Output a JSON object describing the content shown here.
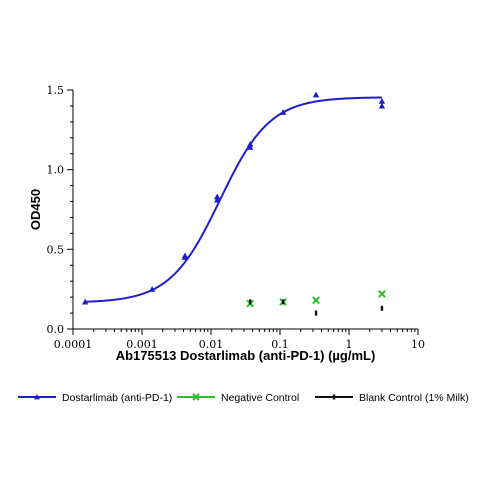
{
  "chart_data": {
    "type": "scatter",
    "xlabel": "Ab175513 Dostarlimab (anti-PD-1) (µg/mL)",
    "ylabel": "OD450",
    "xscale": "log",
    "xlim": [
      0.0001,
      10
    ],
    "ylim": [
      0,
      1.5
    ],
    "x_tick_labels": [
      "0.0001",
      "0.001",
      "0.01",
      "0.1",
      "1",
      "10"
    ],
    "x_tick_values": [
      0.0001,
      0.001,
      0.01,
      0.1,
      1,
      10
    ],
    "y_tick_labels": [
      "0.0",
      "0.5",
      "1.0",
      "1.5"
    ],
    "y_tick_values": [
      0,
      0.5,
      1.0,
      1.5
    ],
    "grid": false,
    "legend_position": "bottom",
    "series": [
      {
        "name": "Dostarlimab (anti-PD-1)",
        "color": "#1f1fc8",
        "marker": "triangle",
        "fit_curve": true,
        "fit": {
          "bottom": 0.165,
          "top": 1.455,
          "ec50": 0.0135,
          "hill": 1.2
        },
        "points": [
          {
            "x": 0.00015,
            "y": 0.17
          },
          {
            "x": 0.0014,
            "y": 0.25
          },
          {
            "x": 0.0042,
            "y": 0.46
          },
          {
            "x": 0.0042,
            "y": 0.45
          },
          {
            "x": 0.0123,
            "y": 0.83
          },
          {
            "x": 0.0123,
            "y": 0.81
          },
          {
            "x": 0.037,
            "y": 1.16
          },
          {
            "x": 0.037,
            "y": 1.14
          },
          {
            "x": 0.111,
            "y": 1.36
          },
          {
            "x": 0.333,
            "y": 1.47
          },
          {
            "x": 3.0,
            "y": 1.43
          },
          {
            "x": 3.0,
            "y": 1.4
          }
        ]
      },
      {
        "name": "Negative Control",
        "color": "#2cc02c",
        "marker": "x",
        "fit_curve": false,
        "points": [
          {
            "x": 0.037,
            "y": 0.16
          },
          {
            "x": 0.111,
            "y": 0.17
          },
          {
            "x": 0.333,
            "y": 0.18
          },
          {
            "x": 3.0,
            "y": 0.22
          }
        ]
      },
      {
        "name": "Blank Control (1% Milk)",
        "color": "#111111",
        "marker": "dash",
        "fit_curve": false,
        "points": [
          {
            "x": 0.037,
            "y": 0.17
          },
          {
            "x": 0.111,
            "y": 0.17
          },
          {
            "x": 0.333,
            "y": 0.1
          },
          {
            "x": 3.0,
            "y": 0.13
          }
        ]
      }
    ]
  }
}
